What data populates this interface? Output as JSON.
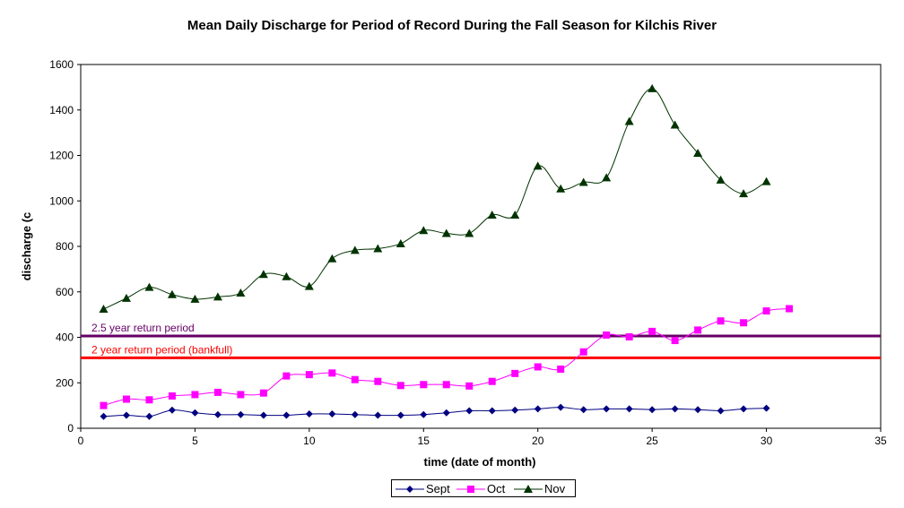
{
  "chart_data": {
    "type": "line",
    "title": "Mean Daily Discharge for Period of Record During the Fall Season for Kilchis River",
    "xlabel": "time (date of month)",
    "ylabel": "discharge (c",
    "xlim": [
      0,
      35
    ],
    "ylim": [
      0,
      1600
    ],
    "xticks": [
      0,
      5,
      10,
      15,
      20,
      25,
      30,
      35
    ],
    "yticks": [
      0,
      200,
      400,
      600,
      800,
      1000,
      1200,
      1400,
      1600
    ],
    "grid": true,
    "legend_position": "bottom-center",
    "series": [
      {
        "name": "Sept",
        "color": "#000080",
        "marker": "diamond",
        "x": [
          1,
          2,
          3,
          4,
          5,
          6,
          7,
          8,
          9,
          10,
          11,
          12,
          13,
          14,
          15,
          16,
          17,
          18,
          19,
          20,
          21,
          22,
          23,
          24,
          25,
          26,
          27,
          28,
          29,
          30
        ],
        "values": [
          52,
          57,
          52,
          80,
          68,
          60,
          60,
          57,
          57,
          63,
          63,
          60,
          57,
          57,
          60,
          68,
          77,
          77,
          80,
          85,
          92,
          82,
          85,
          85,
          82,
          85,
          82,
          77,
          85,
          88
        ]
      },
      {
        "name": "Oct",
        "color": "#ff00ff",
        "marker": "square",
        "x": [
          1,
          2,
          3,
          4,
          5,
          6,
          7,
          8,
          9,
          10,
          11,
          12,
          13,
          14,
          15,
          16,
          17,
          18,
          19,
          20,
          21,
          22,
          23,
          24,
          25,
          26,
          27,
          28,
          29,
          30,
          31
        ],
        "values": [
          100,
          128,
          125,
          142,
          148,
          158,
          148,
          155,
          230,
          236,
          243,
          214,
          206,
          188,
          192,
          192,
          186,
          206,
          241,
          270,
          260,
          336,
          410,
          402,
          426,
          386,
          432,
          472,
          464,
          516,
          526
        ]
      },
      {
        "name": "Nov",
        "color": "#003300",
        "marker": "triangle",
        "x": [
          1,
          2,
          3,
          4,
          5,
          6,
          7,
          8,
          9,
          10,
          11,
          12,
          13,
          14,
          15,
          16,
          17,
          18,
          19,
          20,
          21,
          22,
          23,
          24,
          25,
          26,
          27,
          28,
          29,
          30
        ],
        "values": [
          524,
          572,
          620,
          588,
          568,
          578,
          595,
          677,
          667,
          624,
          746,
          783,
          790,
          812,
          870,
          857,
          857,
          938,
          938,
          1153,
          1053,
          1082,
          1102,
          1350,
          1494,
          1334,
          1210,
          1092,
          1032,
          1085
        ]
      }
    ],
    "reference_lines": [
      {
        "label": "2.5 year return period",
        "value": 406,
        "color": "#660066"
      },
      {
        "label": "2 year return period (bankfull)",
        "value": 310,
        "color": "#ff0000"
      }
    ]
  }
}
